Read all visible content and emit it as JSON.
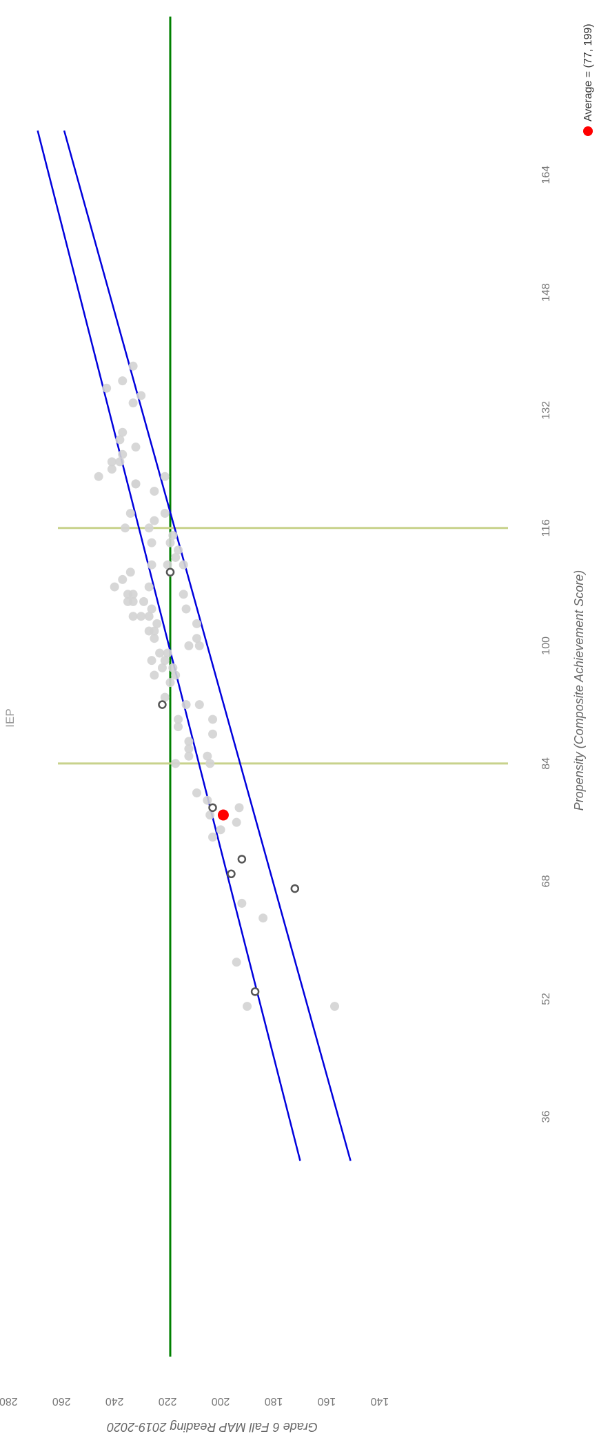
{
  "chart_data": {
    "type": "scatter",
    "title": "IEP",
    "xlabel": "Propensity (Composite Achievement Score)",
    "ylabel": "Grade 6 Fall MAP Reading 2019-2020",
    "xlim": [
      28,
      172
    ],
    "ylim": [
      140,
      280
    ],
    "x_ticks": [
      "36",
      "52",
      "68",
      "84",
      "100",
      "116",
      "132",
      "148",
      "164"
    ],
    "y_ticks": [
      "140",
      "160",
      "180",
      "200",
      "220",
      "240",
      "260",
      "280"
    ],
    "grid": false,
    "legend": {
      "position": "bottom-right",
      "label": "Average = (77, 199)"
    },
    "average_point": {
      "x": 77,
      "y": 199,
      "color": "#ff0000"
    },
    "reference_lines": {
      "horizontal_y": 219,
      "horizontal_color": "#008000",
      "vertical_x": [
        84,
        116
      ],
      "vertical_color": "#c8d28c",
      "band_color": "#0000dd",
      "band_upper": [
        [
          30,
          170
        ],
        [
          170,
          269
        ]
      ],
      "band_lower": [
        [
          30,
          151
        ],
        [
          170,
          259
        ]
      ]
    },
    "series": [
      {
        "style": "filled-gray",
        "color": "#d3d3d3",
        "points": [
          [
            51,
            190
          ],
          [
            51,
            157
          ],
          [
            57,
            194
          ],
          [
            63,
            184
          ],
          [
            65,
            192
          ],
          [
            74,
            203
          ],
          [
            75,
            200
          ],
          [
            76,
            194
          ],
          [
            77,
            204
          ],
          [
            78,
            193
          ],
          [
            79,
            205
          ],
          [
            80,
            209
          ],
          [
            84,
            217
          ],
          [
            84,
            204
          ],
          [
            85,
            205
          ],
          [
            85,
            212
          ],
          [
            86,
            212
          ],
          [
            87,
            212
          ],
          [
            88,
            203
          ],
          [
            89,
            216
          ],
          [
            90,
            203
          ],
          [
            90,
            216
          ],
          [
            92,
            208
          ],
          [
            92,
            213
          ],
          [
            93,
            221
          ],
          [
            95,
            219
          ],
          [
            96,
            217
          ],
          [
            96,
            225
          ],
          [
            97,
            218
          ],
          [
            97,
            222
          ],
          [
            98,
            221
          ],
          [
            98,
            226
          ],
          [
            99,
            220
          ],
          [
            99,
            223
          ],
          [
            100,
            208
          ],
          [
            100,
            212
          ],
          [
            101,
            209
          ],
          [
            101,
            225
          ],
          [
            102,
            227
          ],
          [
            102,
            225
          ],
          [
            103,
            209
          ],
          [
            103,
            224
          ],
          [
            104,
            227
          ],
          [
            104,
            233
          ],
          [
            104,
            230
          ],
          [
            105,
            213
          ],
          [
            105,
            226
          ],
          [
            106,
            229
          ],
          [
            106,
            233
          ],
          [
            106,
            235
          ],
          [
            107,
            214
          ],
          [
            107,
            233
          ],
          [
            107,
            235
          ],
          [
            108,
            227
          ],
          [
            108,
            240
          ],
          [
            109,
            237
          ],
          [
            110,
            234
          ],
          [
            110,
            219
          ],
          [
            111,
            214
          ],
          [
            111,
            226
          ],
          [
            111,
            220
          ],
          [
            112,
            217
          ],
          [
            113,
            216
          ],
          [
            114,
            219
          ],
          [
            114,
            226
          ],
          [
            115,
            218
          ],
          [
            116,
            227
          ],
          [
            116,
            236
          ],
          [
            117,
            225
          ],
          [
            118,
            221
          ],
          [
            118,
            234
          ],
          [
            121,
            225
          ],
          [
            122,
            232
          ],
          [
            122,
            232
          ],
          [
            123,
            221
          ],
          [
            123,
            246
          ],
          [
            124,
            241
          ],
          [
            125,
            241
          ],
          [
            125,
            238
          ],
          [
            126,
            237
          ],
          [
            127,
            232
          ],
          [
            128,
            238
          ],
          [
            129,
            237
          ],
          [
            133,
            233
          ],
          [
            134,
            230
          ],
          [
            135,
            243
          ],
          [
            136,
            237
          ],
          [
            138,
            233
          ]
        ]
      },
      {
        "style": "hollow-dark",
        "color": "#555555",
        "points": [
          [
            53,
            187
          ],
          [
            67,
            172
          ],
          [
            69,
            196
          ],
          [
            71,
            192
          ],
          [
            78,
            203
          ],
          [
            92,
            222
          ],
          [
            110,
            219
          ]
        ]
      }
    ]
  }
}
